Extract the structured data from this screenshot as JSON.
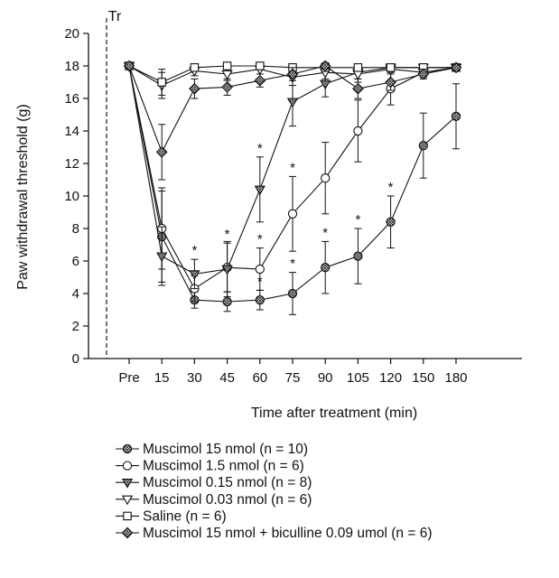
{
  "chart_data": {
    "type": "line",
    "title": "",
    "xlabel": "Time after treatment (min)",
    "ylabel": "Paw withdrawal threshold (g)",
    "ylim": [
      0,
      20
    ],
    "yticks": [
      "0",
      "2",
      "4",
      "6",
      "8",
      "10",
      "12",
      "14",
      "16",
      "18",
      "20"
    ],
    "categories": [
      "Pre",
      "15",
      "30",
      "45",
      "60",
      "75",
      "90",
      "105",
      "120",
      "150",
      "180"
    ],
    "marker_label": "Tr",
    "grid": false,
    "legend_position": "bottom",
    "significance_symbol": "*",
    "series": [
      {
        "name": "Muscimol 15 nmol (n = 10)",
        "marker": "circle-crosshatch",
        "values": [
          18,
          7.5,
          3.6,
          3.5,
          3.6,
          4.0,
          5.6,
          6.3,
          8.4,
          13.1,
          14.9
        ],
        "errors": [
          0,
          2.8,
          0.5,
          0.6,
          0.6,
          1.3,
          1.6,
          1.7,
          1.6,
          2.0,
          2.0
        ],
        "significant": [
          false,
          false,
          false,
          false,
          true,
          true,
          true,
          true,
          true,
          false,
          false
        ]
      },
      {
        "name": "Muscimol 1.5 nmol (n = 6)",
        "marker": "open-circle",
        "values": [
          18,
          8.0,
          4.3,
          5.6,
          5.5,
          8.9,
          11.1,
          14.0,
          16.6,
          17.6,
          17.9
        ],
        "errors": [
          0,
          2.5,
          0.8,
          1.5,
          1.3,
          2.3,
          2.2,
          1.9,
          1.0,
          0.3,
          0.2
        ],
        "significant": [
          false,
          false,
          false,
          true,
          true,
          true,
          false,
          false,
          false,
          false,
          false
        ]
      },
      {
        "name": "Muscimol 0.15 nmol (n = 8)",
        "marker": "triangle-crosshatch",
        "values": [
          18,
          6.3,
          5.2,
          5.5,
          10.4,
          15.8,
          16.9,
          17.6,
          17.9,
          17.9,
          17.9
        ],
        "errors": [
          0,
          1.8,
          0.9,
          1.7,
          2.0,
          1.5,
          0.8,
          0.4,
          0.2,
          0.2,
          0.2
        ],
        "significant": [
          false,
          false,
          true,
          false,
          true,
          false,
          false,
          false,
          false,
          false,
          false
        ]
      },
      {
        "name": "Muscimol 0.03 nmol (n = 6)",
        "marker": "open-triangle",
        "values": [
          18,
          16.8,
          17.7,
          17.5,
          17.8,
          17.3,
          17.6,
          17.5,
          17.8,
          17.6,
          17.9
        ],
        "errors": [
          0,
          0.8,
          0.3,
          0.4,
          0.3,
          0.5,
          0.4,
          0.5,
          0.2,
          0.3,
          0.2
        ],
        "significant": [
          false,
          false,
          false,
          false,
          false,
          false,
          false,
          false,
          false,
          false,
          false
        ]
      },
      {
        "name": "Saline (n = 6)",
        "marker": "open-square",
        "values": [
          18,
          17.0,
          17.9,
          18.0,
          18.0,
          17.9,
          17.9,
          17.9,
          17.9,
          17.9,
          17.9
        ],
        "errors": [
          0,
          0.8,
          0.2,
          0.2,
          0.2,
          0.2,
          0.2,
          0.2,
          0.2,
          0.2,
          0.2
        ],
        "significant": [
          false,
          false,
          false,
          false,
          false,
          false,
          false,
          false,
          false,
          false,
          false
        ]
      },
      {
        "name": "Muscimol 15 nmol + biculline 0.09 umol (n = 6)",
        "marker": "diamond-crosshatch",
        "values": [
          18,
          12.7,
          16.6,
          16.7,
          17.1,
          17.5,
          18.0,
          16.6,
          17.0,
          17.5,
          17.9
        ],
        "errors": [
          0,
          1.7,
          0.6,
          0.5,
          0.4,
          0.4,
          0.2,
          0.6,
          0.5,
          0.3,
          0.2
        ],
        "significant": [
          false,
          false,
          false,
          false,
          false,
          false,
          false,
          false,
          false,
          false,
          false
        ]
      }
    ]
  }
}
